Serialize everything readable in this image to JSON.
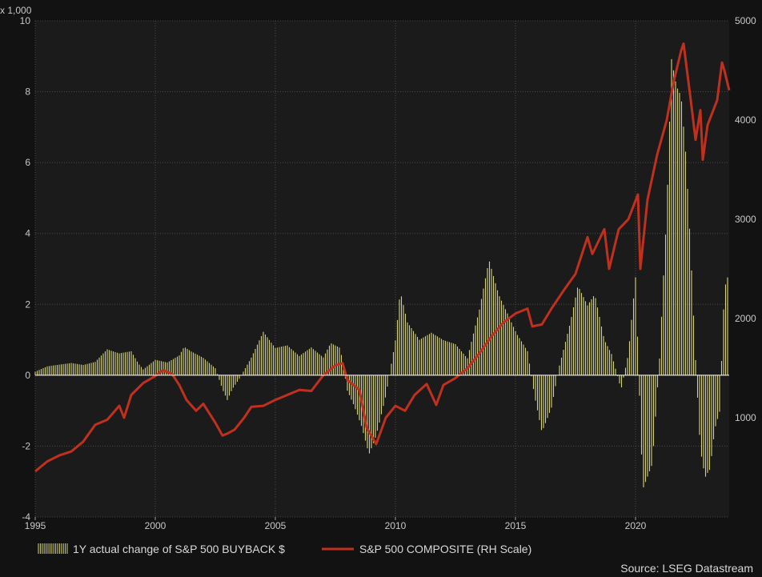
{
  "chart_data": {
    "type": "bar+line",
    "left_axis_unit": "x 1,000",
    "x_ticks": [
      "1995",
      "2000",
      "2005",
      "2010",
      "2015",
      "2020"
    ],
    "x_range": [
      1995,
      2023.9
    ],
    "left_axis": {
      "ticks": [
        "-4",
        "-2",
        "0",
        "2",
        "4",
        "6",
        "8",
        "10"
      ],
      "range": [
        -4,
        10
      ]
    },
    "right_axis": {
      "ticks": [
        "1000",
        "2000",
        "3000",
        "4000",
        "5000"
      ],
      "range": [
        0,
        5000
      ]
    },
    "grid": true,
    "legend_position": "bottom",
    "source": "Source: LSEG Datastream",
    "series": [
      {
        "name": "1Y actual change of S&P 500 BUYBACK $",
        "type": "bar",
        "axis": "left",
        "color": "#d6d47a",
        "points": [
          [
            1995.0,
            0.1
          ],
          [
            1995.5,
            0.25
          ],
          [
            1996.0,
            0.3
          ],
          [
            1996.5,
            0.35
          ],
          [
            1997.0,
            0.3
          ],
          [
            1997.5,
            0.4
          ],
          [
            1998.0,
            0.8
          ],
          [
            1998.5,
            0.7
          ],
          [
            1999.0,
            0.8
          ],
          [
            1999.3,
            0.4
          ],
          [
            1999.5,
            0.2
          ],
          [
            2000.0,
            0.5
          ],
          [
            2000.5,
            0.4
          ],
          [
            2001.0,
            0.6
          ],
          [
            2001.2,
            0.85
          ],
          [
            2001.5,
            0.7
          ],
          [
            2002.0,
            0.5
          ],
          [
            2002.5,
            0.2
          ],
          [
            2002.8,
            -0.4
          ],
          [
            2003.0,
            -0.7
          ],
          [
            2003.2,
            -0.4
          ],
          [
            2003.5,
            -0.1
          ],
          [
            2004.0,
            0.5
          ],
          [
            2004.5,
            1.25
          ],
          [
            2005.0,
            0.8
          ],
          [
            2005.5,
            0.9
          ],
          [
            2006.0,
            0.6
          ],
          [
            2006.5,
            0.9
          ],
          [
            2007.0,
            0.6
          ],
          [
            2007.3,
            1.1
          ],
          [
            2007.7,
            0.9
          ],
          [
            2008.0,
            -0.5
          ],
          [
            2008.3,
            -1.0
          ],
          [
            2008.6,
            -1.6
          ],
          [
            2008.9,
            -2.4
          ],
          [
            2009.2,
            -1.8
          ],
          [
            2009.6,
            -0.6
          ],
          [
            2010.0,
            1.0
          ],
          [
            2010.2,
            2.4
          ],
          [
            2010.5,
            1.5
          ],
          [
            2011.0,
            1.0
          ],
          [
            2011.5,
            1.2
          ],
          [
            2012.0,
            1.0
          ],
          [
            2012.5,
            0.9
          ],
          [
            2013.0,
            0.5
          ],
          [
            2013.5,
            2.0
          ],
          [
            2013.9,
            3.6
          ],
          [
            2014.3,
            2.6
          ],
          [
            2014.7,
            2.0
          ],
          [
            2015.0,
            1.5
          ],
          [
            2015.5,
            0.8
          ],
          [
            2015.8,
            -0.7
          ],
          [
            2016.1,
            -1.8
          ],
          [
            2016.5,
            -1.0
          ],
          [
            2016.8,
            0.2
          ],
          [
            2017.3,
            1.6
          ],
          [
            2017.6,
            2.6
          ],
          [
            2018.0,
            2.0
          ],
          [
            2018.3,
            2.3
          ],
          [
            2018.7,
            1.0
          ],
          [
            2019.0,
            0.6
          ],
          [
            2019.4,
            -0.4
          ],
          [
            2019.7,
            0.6
          ],
          [
            2020.0,
            2.8
          ],
          [
            2020.3,
            -3.3
          ],
          [
            2020.7,
            -2.6
          ],
          [
            2021.0,
            0.5
          ],
          [
            2021.3,
            5.0
          ],
          [
            2021.5,
            9.7
          ],
          [
            2021.7,
            9.0
          ],
          [
            2021.9,
            8.8
          ],
          [
            2022.1,
            7.0
          ],
          [
            2022.3,
            4.0
          ],
          [
            2022.5,
            0.5
          ],
          [
            2022.7,
            -2.5
          ],
          [
            2022.9,
            -3.5
          ],
          [
            2023.1,
            -3.2
          ],
          [
            2023.3,
            -1.8
          ],
          [
            2023.5,
            -1.2
          ],
          [
            2023.7,
            2.8
          ],
          [
            2023.9,
            3.3
          ]
        ]
      },
      {
        "name": "S&P 500 COMPOSITE (RH Scale)",
        "type": "line",
        "axis": "right",
        "color": "#c0301e",
        "points": [
          [
            1995.0,
            460
          ],
          [
            1995.5,
            560
          ],
          [
            1996.0,
            620
          ],
          [
            1996.5,
            660
          ],
          [
            1997.0,
            760
          ],
          [
            1997.5,
            930
          ],
          [
            1998.0,
            980
          ],
          [
            1998.5,
            1120
          ],
          [
            1998.7,
            1000
          ],
          [
            1999.0,
            1230
          ],
          [
            1999.5,
            1350
          ],
          [
            2000.0,
            1420
          ],
          [
            2000.3,
            1480
          ],
          [
            2000.7,
            1440
          ],
          [
            2001.0,
            1330
          ],
          [
            2001.3,
            1180
          ],
          [
            2001.7,
            1070
          ],
          [
            2002.0,
            1140
          ],
          [
            2002.5,
            950
          ],
          [
            2002.8,
            820
          ],
          [
            2003.0,
            840
          ],
          [
            2003.3,
            880
          ],
          [
            2003.7,
            1000
          ],
          [
            2004.0,
            1110
          ],
          [
            2004.5,
            1120
          ],
          [
            2005.0,
            1180
          ],
          [
            2005.5,
            1230
          ],
          [
            2006.0,
            1280
          ],
          [
            2006.5,
            1270
          ],
          [
            2007.0,
            1430
          ],
          [
            2007.5,
            1530
          ],
          [
            2007.8,
            1550
          ],
          [
            2008.0,
            1380
          ],
          [
            2008.5,
            1280
          ],
          [
            2008.8,
            900
          ],
          [
            2009.2,
            735
          ],
          [
            2009.6,
            1000
          ],
          [
            2010.0,
            1120
          ],
          [
            2010.4,
            1070
          ],
          [
            2010.8,
            1230
          ],
          [
            2011.3,
            1340
          ],
          [
            2011.7,
            1130
          ],
          [
            2012.0,
            1330
          ],
          [
            2012.5,
            1400
          ],
          [
            2013.0,
            1500
          ],
          [
            2013.5,
            1650
          ],
          [
            2014.0,
            1820
          ],
          [
            2014.5,
            1960
          ],
          [
            2015.0,
            2050
          ],
          [
            2015.5,
            2100
          ],
          [
            2015.7,
            1920
          ],
          [
            2016.1,
            1940
          ],
          [
            2016.5,
            2100
          ],
          [
            2017.0,
            2280
          ],
          [
            2017.5,
            2450
          ],
          [
            2018.0,
            2820
          ],
          [
            2018.2,
            2650
          ],
          [
            2018.7,
            2900
          ],
          [
            2018.9,
            2500
          ],
          [
            2019.3,
            2900
          ],
          [
            2019.7,
            3000
          ],
          [
            2020.1,
            3250
          ],
          [
            2020.2,
            2500
          ],
          [
            2020.5,
            3200
          ],
          [
            2020.9,
            3650
          ],
          [
            2021.3,
            4000
          ],
          [
            2021.6,
            4400
          ],
          [
            2021.9,
            4700
          ],
          [
            2022.0,
            4770
          ],
          [
            2022.3,
            4200
          ],
          [
            2022.5,
            3800
          ],
          [
            2022.7,
            4100
          ],
          [
            2022.8,
            3600
          ],
          [
            2023.0,
            3950
          ],
          [
            2023.4,
            4200
          ],
          [
            2023.6,
            4580
          ],
          [
            2023.7,
            4500
          ],
          [
            2023.9,
            4300
          ]
        ]
      }
    ]
  }
}
